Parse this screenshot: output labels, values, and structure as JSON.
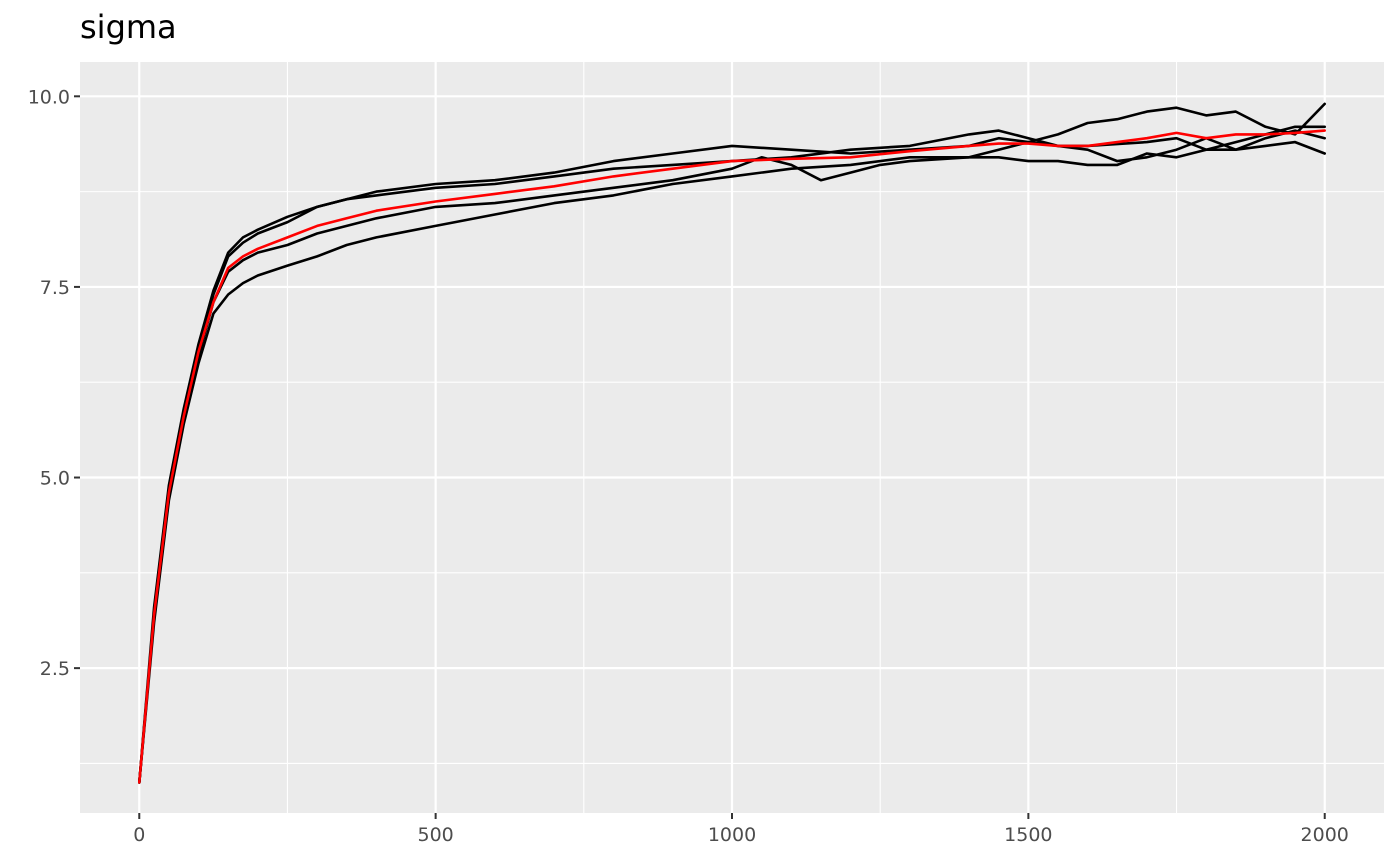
{
  "chart_data": {
    "type": "line",
    "title": "sigma",
    "xlabel": "",
    "ylabel": "",
    "xlim": [
      -100,
      2100
    ],
    "ylim": [
      0.6,
      10.45
    ],
    "x_ticks": [
      0,
      500,
      1000,
      1500,
      2000
    ],
    "x_tick_labels": [
      "0",
      "500",
      "1000",
      "1500",
      "2000"
    ],
    "y_ticks": [
      2.5,
      5.0,
      7.5,
      10.0
    ],
    "y_tick_labels": [
      "2.5",
      "5.0",
      "7.5",
      "10.0"
    ],
    "grid": true,
    "legend": "none",
    "colors": {
      "panel": "#ebebeb",
      "grid": "#ffffff",
      "chains": "#000000",
      "mean": "#ff0000"
    },
    "series": [
      {
        "color": "#000000",
        "points": [
          [
            0,
            1.0
          ],
          [
            25,
            3.3
          ],
          [
            50,
            4.9
          ],
          [
            75,
            5.9
          ],
          [
            100,
            6.75
          ],
          [
            125,
            7.45
          ],
          [
            150,
            7.95
          ],
          [
            175,
            8.15
          ],
          [
            200,
            8.25
          ],
          [
            250,
            8.42
          ],
          [
            300,
            8.55
          ],
          [
            350,
            8.65
          ],
          [
            400,
            8.75
          ],
          [
            500,
            8.85
          ],
          [
            600,
            8.9
          ],
          [
            700,
            9.0
          ],
          [
            800,
            9.15
          ],
          [
            900,
            9.25
          ],
          [
            1000,
            9.35
          ],
          [
            1100,
            9.3
          ],
          [
            1200,
            9.25
          ],
          [
            1300,
            9.3
          ],
          [
            1400,
            9.35
          ],
          [
            1450,
            9.45
          ],
          [
            1500,
            9.4
          ],
          [
            1550,
            9.5
          ],
          [
            1600,
            9.65
          ],
          [
            1650,
            9.7
          ],
          [
            1700,
            9.8
          ],
          [
            1750,
            9.85
          ],
          [
            1800,
            9.75
          ],
          [
            1850,
            9.8
          ],
          [
            1900,
            9.6
          ],
          [
            1950,
            9.5
          ],
          [
            2000,
            9.9
          ]
        ]
      },
      {
        "color": "#000000",
        "points": [
          [
            0,
            1.0
          ],
          [
            25,
            3.2
          ],
          [
            50,
            4.8
          ],
          [
            75,
            5.85
          ],
          [
            100,
            6.7
          ],
          [
            125,
            7.4
          ],
          [
            150,
            7.9
          ],
          [
            175,
            8.08
          ],
          [
            200,
            8.2
          ],
          [
            250,
            8.35
          ],
          [
            300,
            8.55
          ],
          [
            350,
            8.65
          ],
          [
            400,
            8.7
          ],
          [
            500,
            8.8
          ],
          [
            600,
            8.85
          ],
          [
            700,
            8.95
          ],
          [
            800,
            9.05
          ],
          [
            900,
            9.1
          ],
          [
            1000,
            9.15
          ],
          [
            1100,
            9.2
          ],
          [
            1200,
            9.3
          ],
          [
            1300,
            9.35
          ],
          [
            1400,
            9.5
          ],
          [
            1450,
            9.55
          ],
          [
            1500,
            9.45
          ],
          [
            1550,
            9.35
          ],
          [
            1600,
            9.35
          ],
          [
            1700,
            9.4
          ],
          [
            1750,
            9.45
          ],
          [
            1800,
            9.3
          ],
          [
            1850,
            9.3
          ],
          [
            1900,
            9.45
          ],
          [
            1950,
            9.55
          ],
          [
            2000,
            9.45
          ]
        ]
      },
      {
        "color": "#000000",
        "points": [
          [
            0,
            1.0
          ],
          [
            25,
            3.2
          ],
          [
            50,
            4.75
          ],
          [
            75,
            5.8
          ],
          [
            100,
            6.6
          ],
          [
            125,
            7.3
          ],
          [
            150,
            7.7
          ],
          [
            175,
            7.85
          ],
          [
            200,
            7.95
          ],
          [
            250,
            8.05
          ],
          [
            300,
            8.2
          ],
          [
            350,
            8.3
          ],
          [
            400,
            8.4
          ],
          [
            500,
            8.55
          ],
          [
            600,
            8.6
          ],
          [
            700,
            8.7
          ],
          [
            800,
            8.8
          ],
          [
            900,
            8.9
          ],
          [
            1000,
            9.05
          ],
          [
            1050,
            9.2
          ],
          [
            1100,
            9.1
          ],
          [
            1150,
            8.9
          ],
          [
            1200,
            9.0
          ],
          [
            1250,
            9.1
          ],
          [
            1300,
            9.15
          ],
          [
            1400,
            9.2
          ],
          [
            1450,
            9.3
          ],
          [
            1500,
            9.4
          ],
          [
            1550,
            9.35
          ],
          [
            1600,
            9.3
          ],
          [
            1650,
            9.15
          ],
          [
            1700,
            9.2
          ],
          [
            1750,
            9.3
          ],
          [
            1800,
            9.45
          ],
          [
            1850,
            9.3
          ],
          [
            1900,
            9.35
          ],
          [
            1950,
            9.4
          ],
          [
            2000,
            9.25
          ]
        ]
      },
      {
        "color": "#000000",
        "points": [
          [
            0,
            1.0
          ],
          [
            25,
            3.1
          ],
          [
            50,
            4.7
          ],
          [
            75,
            5.7
          ],
          [
            100,
            6.5
          ],
          [
            125,
            7.15
          ],
          [
            150,
            7.4
          ],
          [
            175,
            7.55
          ],
          [
            200,
            7.65
          ],
          [
            250,
            7.78
          ],
          [
            300,
            7.9
          ],
          [
            350,
            8.05
          ],
          [
            400,
            8.15
          ],
          [
            500,
            8.3
          ],
          [
            600,
            8.45
          ],
          [
            700,
            8.6
          ],
          [
            800,
            8.7
          ],
          [
            900,
            8.85
          ],
          [
            1000,
            8.95
          ],
          [
            1100,
            9.05
          ],
          [
            1200,
            9.1
          ],
          [
            1300,
            9.2
          ],
          [
            1400,
            9.2
          ],
          [
            1450,
            9.2
          ],
          [
            1500,
            9.15
          ],
          [
            1550,
            9.15
          ],
          [
            1600,
            9.1
          ],
          [
            1650,
            9.1
          ],
          [
            1700,
            9.25
          ],
          [
            1750,
            9.2
          ],
          [
            1800,
            9.3
          ],
          [
            1850,
            9.4
          ],
          [
            1900,
            9.5
          ],
          [
            1950,
            9.6
          ],
          [
            2000,
            9.6
          ]
        ]
      },
      {
        "color": "#ff0000",
        "points": [
          [
            0,
            1.0
          ],
          [
            25,
            3.2
          ],
          [
            50,
            4.8
          ],
          [
            75,
            5.8
          ],
          [
            100,
            6.65
          ],
          [
            125,
            7.3
          ],
          [
            150,
            7.75
          ],
          [
            175,
            7.9
          ],
          [
            200,
            8.0
          ],
          [
            250,
            8.15
          ],
          [
            300,
            8.3
          ],
          [
            350,
            8.4
          ],
          [
            400,
            8.5
          ],
          [
            500,
            8.62
          ],
          [
            600,
            8.72
          ],
          [
            700,
            8.82
          ],
          [
            800,
            8.95
          ],
          [
            900,
            9.05
          ],
          [
            1000,
            9.15
          ],
          [
            1100,
            9.18
          ],
          [
            1200,
            9.2
          ],
          [
            1300,
            9.28
          ],
          [
            1400,
            9.35
          ],
          [
            1450,
            9.38
          ],
          [
            1500,
            9.38
          ],
          [
            1550,
            9.35
          ],
          [
            1600,
            9.35
          ],
          [
            1650,
            9.4
          ],
          [
            1700,
            9.45
          ],
          [
            1750,
            9.52
          ],
          [
            1800,
            9.45
          ],
          [
            1850,
            9.5
          ],
          [
            1900,
            9.5
          ],
          [
            1950,
            9.52
          ],
          [
            2000,
            9.55
          ]
        ]
      }
    ]
  }
}
